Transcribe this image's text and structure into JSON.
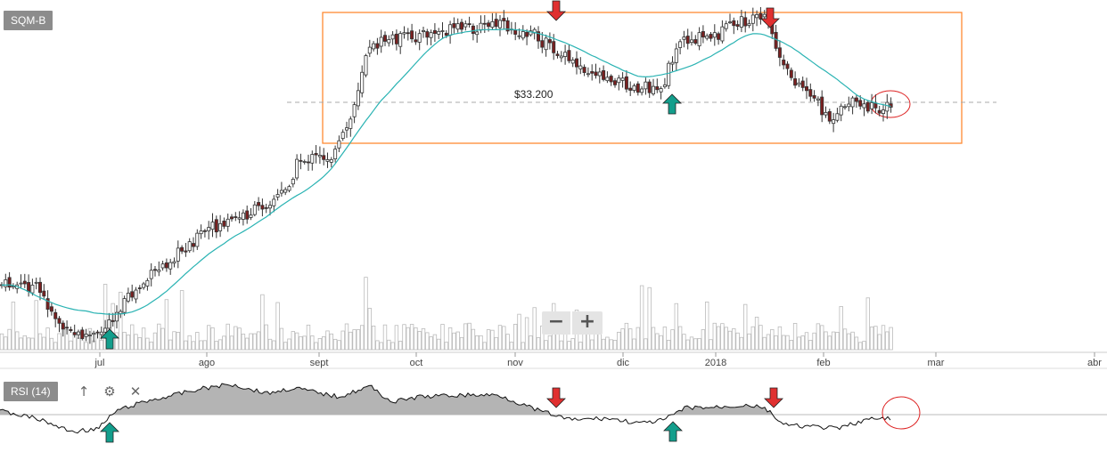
{
  "chart_data": {
    "type": "candlestick",
    "symbol": "SQM-B",
    "x_tick_labels": [
      "jul",
      "ago",
      "sept",
      "oct",
      "nov",
      "dic",
      "2018",
      "feb",
      "mar",
      "abr"
    ],
    "price_annotation": "$33.200",
    "reference_level": 33200,
    "moving_average": true,
    "volume_bars": true,
    "grid": false,
    "indicator": {
      "name": "RSI (14)"
    },
    "markers": [
      {
        "type": "buy-arrow",
        "position": "jul low"
      },
      {
        "type": "sell-arrow",
        "position": "mid nov"
      },
      {
        "type": "buy-arrow",
        "position": "mid dic"
      },
      {
        "type": "sell-arrow",
        "position": "late ene 2018"
      }
    ],
    "colors": {
      "candle_up": "#ffffff",
      "candle_down": "#7a2020",
      "wick": "#333333",
      "moving_average": "#2ab3b3",
      "range_box": "#ff8a33",
      "volume": "#ffffff",
      "rsi_fill": "#b4b4b4",
      "buy_arrow": "#139e8c",
      "sell_arrow": "#e03030",
      "highlight_circle": "#dd2222"
    }
  },
  "toolbar": {
    "zoom_out_label": "−",
    "zoom_in_label": "+",
    "up_icon": "arrow-up-icon",
    "settings_icon": "gear-icon",
    "close_icon": "close-icon"
  }
}
